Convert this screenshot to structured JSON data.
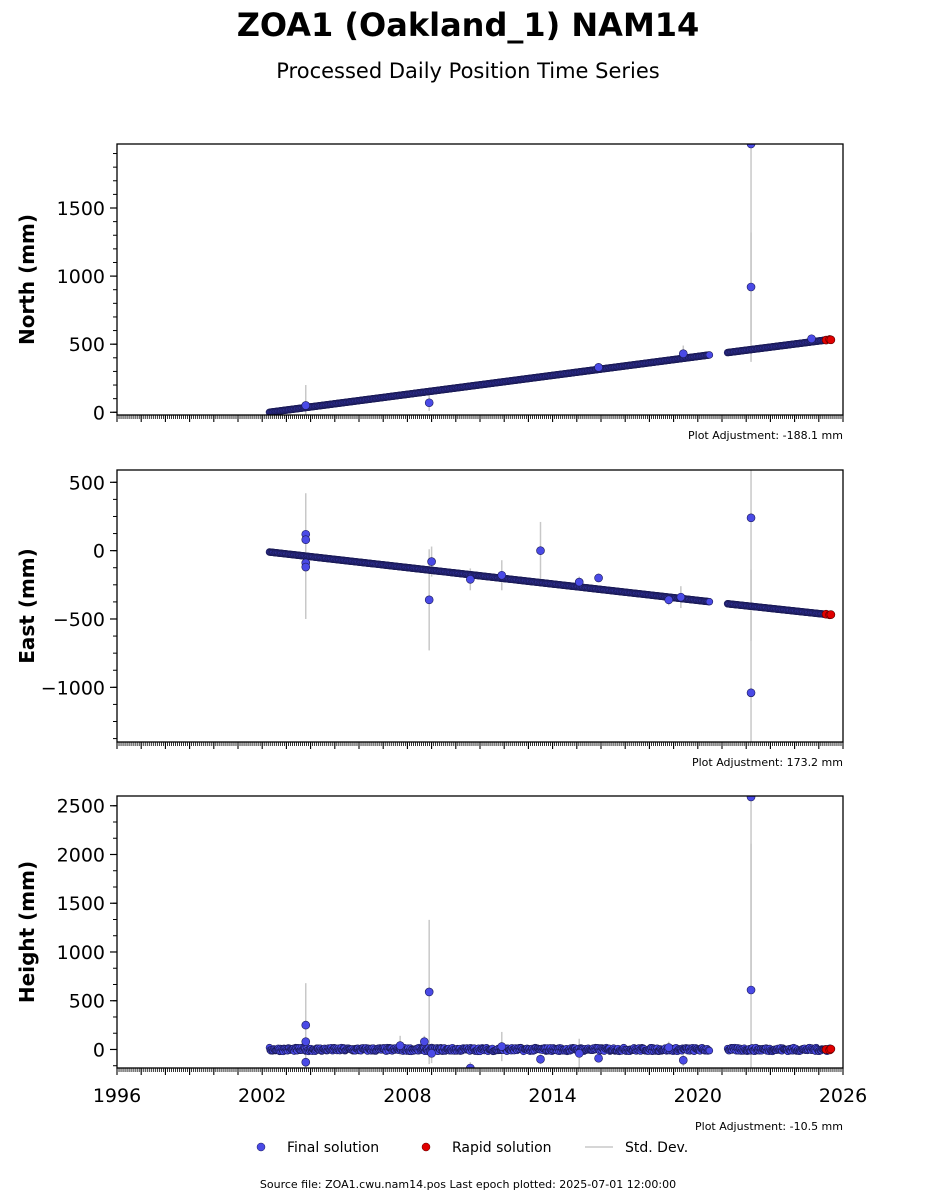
{
  "title": "ZOA1 (Oakland_1) NAM14",
  "subtitle": "Processed Daily Position Time Series",
  "source_text": "Source file: ZOA1.cwu.nam14.pos  Last epoch plotted: 2025-07-01 12:00:00",
  "legend": {
    "final_label": "Final solution",
    "rapid_label": "Rapid solution",
    "std_label": "Std. Dev.",
    "placement": "bottom-center"
  },
  "colors": {
    "final": "#4a4ae6",
    "final_edge": "#1a1a55",
    "rapid": "#e00000",
    "std": "#c8c8c8",
    "axis": "#000000"
  },
  "chart_data": [
    {
      "type": "scatter",
      "ylabel": "North (mm)",
      "adjustment": "Plot Adjustment: -188.1 mm",
      "xlim": [
        1996,
        2026
      ],
      "ylim": [
        -20,
        1970
      ],
      "yticks": [
        0,
        500,
        1000,
        1500
      ],
      "ytick_labels": [
        "0",
        "500",
        "1000",
        "1500"
      ],
      "yminor_step": 100,
      "show_xtick_labels": false,
      "trend": [
        [
          2002.3,
          0
        ],
        [
          2021.3,
          440
        ],
        [
          2025.5,
          535
        ]
      ],
      "gap": [
        2020.5,
        2021.2
      ],
      "outliers": [
        {
          "x": 2008.9,
          "y": 70,
          "sd": 60
        },
        {
          "x": 2003.8,
          "y": 50,
          "sd": 150
        },
        {
          "x": 2019.4,
          "y": 430,
          "sd": 60
        },
        {
          "x": 2015.9,
          "y": 330,
          "sd": 30
        },
        {
          "x": 2022.2,
          "y": 920,
          "sd": 400
        },
        {
          "x": 2022.2,
          "y": 1970,
          "sd": 1600
        },
        {
          "x": 2024.7,
          "y": 540,
          "sd": 20
        }
      ],
      "rapid": [
        [
          2025.3,
          530
        ],
        [
          2025.45,
          535
        ],
        [
          2025.5,
          532
        ]
      ]
    },
    {
      "type": "scatter",
      "ylabel": "East (mm)",
      "adjustment": "Plot Adjustment: 173.2 mm",
      "xlim": [
        1996,
        2026
      ],
      "ylim": [
        -1400,
        590
      ],
      "yticks": [
        -1000,
        -500,
        0,
        500
      ],
      "ytick_labels": [
        "−1000",
        "−500",
        "0",
        "500"
      ],
      "yminor_step": 125,
      "show_xtick_labels": false,
      "trend": [
        [
          2002.3,
          -10
        ],
        [
          2021.3,
          -390
        ],
        [
          2025.5,
          -470
        ]
      ],
      "gap": [
        2020.5,
        2021.2
      ],
      "outliers": [
        {
          "x": 2003.8,
          "y": 120,
          "sd": 300
        },
        {
          "x": 2003.8,
          "y": 80,
          "sd": 200
        },
        {
          "x": 2003.8,
          "y": -90,
          "sd": 300
        },
        {
          "x": 2003.8,
          "y": -120,
          "sd": 380
        },
        {
          "x": 2008.9,
          "y": -360,
          "sd": 370
        },
        {
          "x": 2009.0,
          "y": -80,
          "sd": 110
        },
        {
          "x": 2010.6,
          "y": -210,
          "sd": 80
        },
        {
          "x": 2011.9,
          "y": -180,
          "sd": 110
        },
        {
          "x": 2013.5,
          "y": 0,
          "sd": 210
        },
        {
          "x": 2015.1,
          "y": -230,
          "sd": 40
        },
        {
          "x": 2015.9,
          "y": -200,
          "sd": 30
        },
        {
          "x": 2018.8,
          "y": -360,
          "sd": 40
        },
        {
          "x": 2019.3,
          "y": -340,
          "sd": 80
        },
        {
          "x": 2022.2,
          "y": 240,
          "sd": 900
        },
        {
          "x": 2022.2,
          "y": -1040,
          "sd": 900
        }
      ],
      "rapid": [
        [
          2025.3,
          -465
        ],
        [
          2025.45,
          -470
        ],
        [
          2025.5,
          -468
        ]
      ]
    },
    {
      "type": "scatter",
      "ylabel": "Height (mm)",
      "adjustment": "Plot Adjustment: -10.5 mm",
      "xlim": [
        1996,
        2026
      ],
      "ylim": [
        -190,
        2600
      ],
      "yticks": [
        0,
        500,
        1000,
        1500,
        2000,
        2500
      ],
      "ytick_labels": [
        "0",
        "500",
        "1000",
        "1500",
        "2000",
        "2500"
      ],
      "yminor_step": 166.6667,
      "show_xtick_labels": true,
      "xticks": [
        1996,
        2002,
        2008,
        2014,
        2020,
        2026
      ],
      "xtick_labels": [
        "1996",
        "2002",
        "2008",
        "2014",
        "2020",
        "2026"
      ],
      "trend": [
        [
          2002.3,
          0
        ],
        [
          2021.3,
          0
        ],
        [
          2025.5,
          0
        ]
      ],
      "gap": [
        2020.5,
        2021.2
      ],
      "noise": 20,
      "outliers": [
        {
          "x": 2003.8,
          "y": 250,
          "sd": 300
        },
        {
          "x": 2003.8,
          "y": 80,
          "sd": 600
        },
        {
          "x": 2003.8,
          "y": -130,
          "sd": 500
        },
        {
          "x": 2007.7,
          "y": 40,
          "sd": 100
        },
        {
          "x": 2008.7,
          "y": 80,
          "sd": 60
        },
        {
          "x": 2008.9,
          "y": 590,
          "sd": 740
        },
        {
          "x": 2009.0,
          "y": -40,
          "sd": 100
        },
        {
          "x": 2010.6,
          "y": -190,
          "sd": 60
        },
        {
          "x": 2011.9,
          "y": 30,
          "sd": 150
        },
        {
          "x": 2013.5,
          "y": -100,
          "sd": 50
        },
        {
          "x": 2015.1,
          "y": -40,
          "sd": 150
        },
        {
          "x": 2015.9,
          "y": -90,
          "sd": 40
        },
        {
          "x": 2018.8,
          "y": 20,
          "sd": 60
        },
        {
          "x": 2019.4,
          "y": -110,
          "sd": 60
        },
        {
          "x": 2022.2,
          "y": 2590,
          "sd": 2000
        },
        {
          "x": 2022.2,
          "y": 610,
          "sd": 1500
        }
      ],
      "rapid": [
        [
          2025.3,
          0
        ],
        [
          2025.45,
          -5
        ],
        [
          2025.5,
          5
        ]
      ]
    }
  ]
}
